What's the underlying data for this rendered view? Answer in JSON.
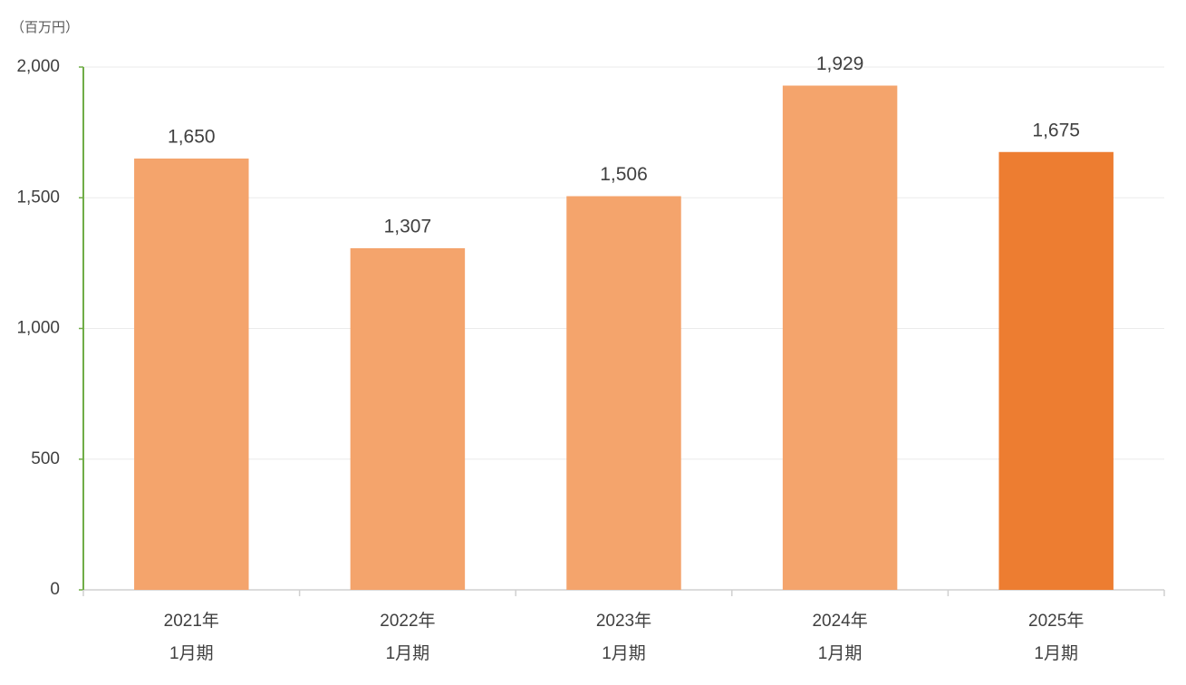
{
  "chart_data": {
    "type": "bar",
    "y_label": "（百万円）",
    "categories": [
      [
        "2021年",
        "1月期"
      ],
      [
        "2022年",
        "1月期"
      ],
      [
        "2023年",
        "1月期"
      ],
      [
        "2024年",
        "1月期"
      ],
      [
        "2025年",
        "1月期"
      ]
    ],
    "values": [
      1650,
      1307,
      1506,
      1929,
      1675
    ],
    "value_labels": [
      "1,650",
      "1,307",
      "1,506",
      "1,929",
      "1,675"
    ],
    "colors": [
      "#f4a46c",
      "#f4a46c",
      "#f4a46c",
      "#f4a46c",
      "#ed7d31"
    ],
    "ylim": [
      0,
      2000
    ],
    "yticks": [
      0,
      500,
      {
        "value": 1000,
        "label": "1,000"
      },
      {
        "value": 1500,
        "label": "1,500"
      },
      {
        "value": 2000,
        "label": "2,000"
      }
    ],
    "grid": true
  }
}
